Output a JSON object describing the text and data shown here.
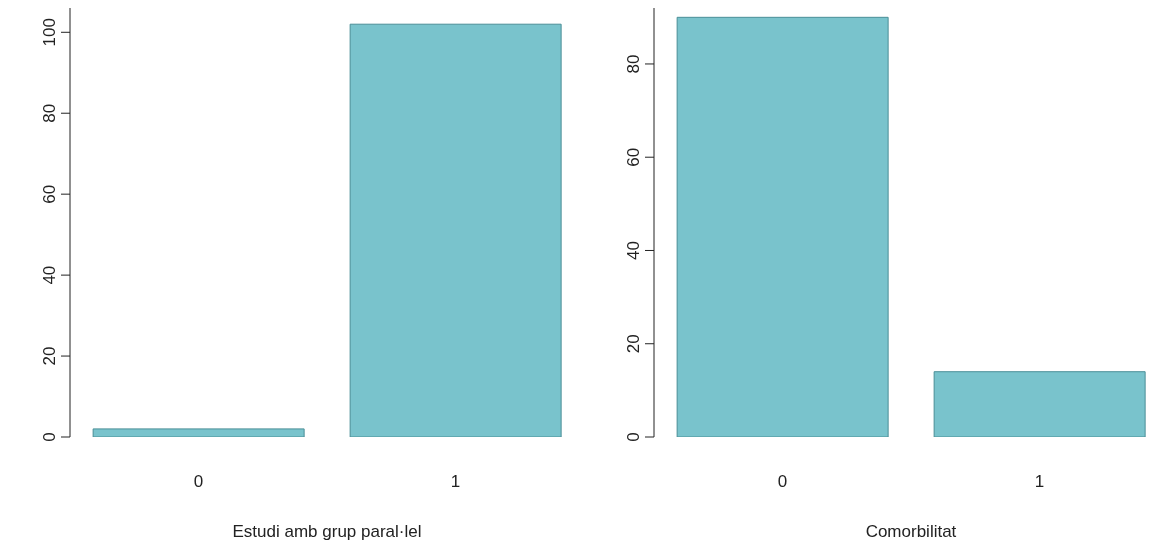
{
  "chart_data": [
    {
      "type": "bar",
      "categories": [
        "0",
        "1"
      ],
      "values": [
        2,
        102
      ],
      "color": "#79c3cc",
      "xlabel": "Estudi amb grup paral·lel",
      "ylim": [
        0,
        106
      ],
      "yticks": [
        0,
        20,
        40,
        60,
        80,
        100
      ],
      "grid": false,
      "legend": false
    },
    {
      "type": "bar",
      "categories": [
        "0",
        "1"
      ],
      "values": [
        90,
        14
      ],
      "color": "#79c3cc",
      "xlabel": "Comorbilitat",
      "ylim": [
        0,
        92
      ],
      "yticks": [
        0,
        20,
        40,
        60,
        80
      ],
      "grid": false,
      "legend": false
    }
  ]
}
